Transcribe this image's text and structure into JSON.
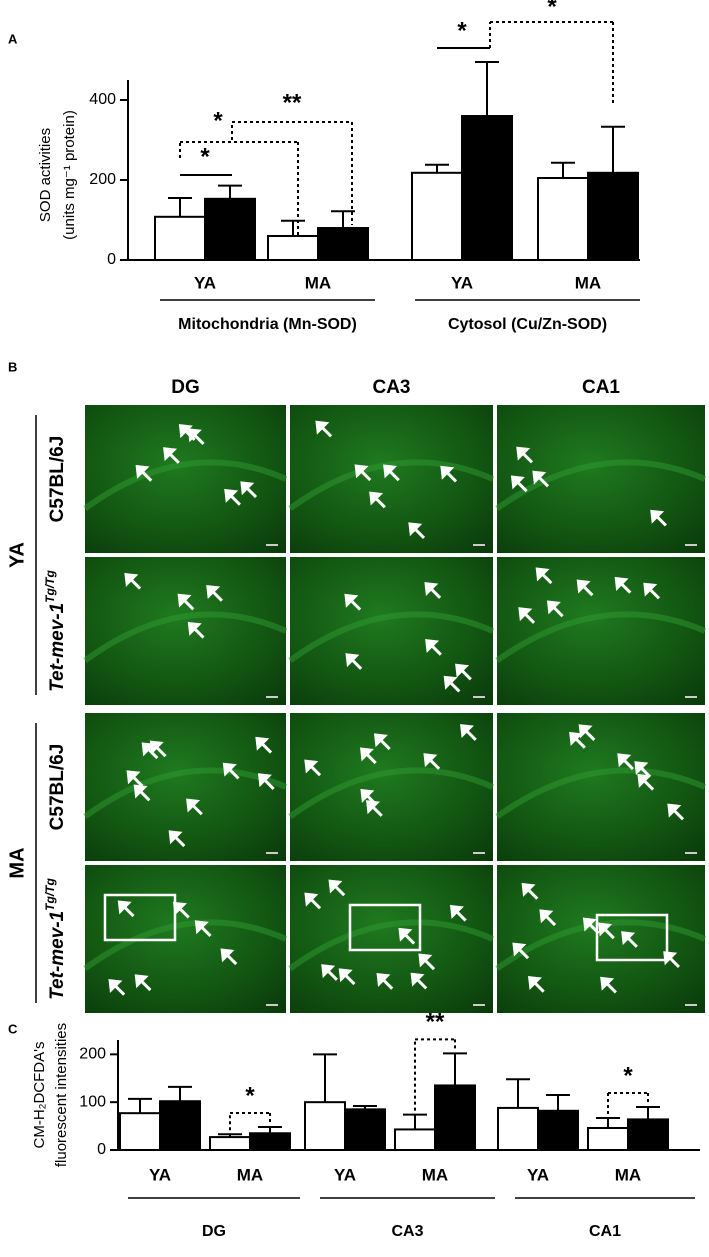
{
  "chart_data": [
    {
      "type": "bar",
      "panel_label": "A",
      "ylabel": [
        "SOD activities",
        "(units mg⁻¹ protein)"
      ],
      "categories": [
        "YA",
        "MA",
        "YA",
        "MA"
      ],
      "groups": [
        "Mitochondria (Mn-SOD)",
        "Cytosol (Cu/Zn-SOD)"
      ],
      "series": [
        {
          "color": "#ffffff",
          "values": [
            108,
            60,
            218,
            205
          ],
          "errors": [
            47,
            38,
            20,
            38
          ]
        },
        {
          "color": "#000000",
          "values": [
            153,
            80,
            360,
            218
          ],
          "errors": [
            33,
            42,
            135,
            115
          ]
        }
      ],
      "ylim": [
        0,
        450
      ],
      "yticks": [
        0,
        200,
        400
      ],
      "annotations": [
        "*",
        "*",
        "**",
        "*",
        "*"
      ]
    },
    {
      "type": "bar",
      "panel_label": "C",
      "ylabel": [
        "CM-H₂DCFDA's",
        "fluorescent intensities"
      ],
      "categories": [
        "YA",
        "MA",
        "YA",
        "MA",
        "YA",
        "MA"
      ],
      "groups": [
        "DG",
        "CA3",
        "CA1"
      ],
      "series": [
        {
          "color": "#ffffff",
          "values": [
            77,
            27,
            100,
            43,
            88,
            46
          ],
          "errors": [
            30,
            6,
            100,
            31,
            60,
            21
          ]
        },
        {
          "color": "#000000",
          "values": [
            102,
            35,
            85,
            135,
            82,
            64
          ],
          "errors": [
            30,
            13,
            7,
            67,
            33,
            26
          ]
        }
      ],
      "ylim": [
        0,
        230
      ],
      "yticks": [
        0,
        100,
        200
      ],
      "annotations": [
        "*",
        "**",
        "*"
      ]
    }
  ],
  "panel_b": {
    "panel_label": "B",
    "columns": [
      "DG",
      "CA3",
      "CA1"
    ],
    "ages": [
      "YA",
      "MA"
    ],
    "strains": [
      {
        "name": "C57BL/6J"
      },
      {
        "name": "Tet-mev-1",
        "sup": "Tg/Tg"
      }
    ]
  }
}
